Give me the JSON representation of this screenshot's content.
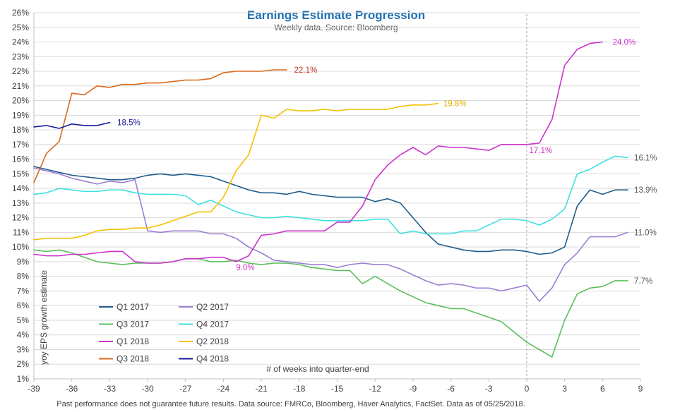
{
  "chart_data": {
    "type": "line",
    "title": "Earnings Estimate Progression",
    "subtitle": "Weekly data.  Source: Bloomberg",
    "xlabel": "# of weeks into quarter-end",
    "ylabel": "yoy EPS growth estimate",
    "footnote": "Past performance does not guarantee future results. Data source: FMRCo,  Bloomberg,  Haver Analytics, FactSet.  Data as of 05/25/2018.",
    "xlim": [
      -39,
      9
    ],
    "ylim": [
      1,
      26
    ],
    "x_ticks": [
      -39,
      -36,
      -33,
      -30,
      -27,
      -24,
      -21,
      -18,
      -15,
      -12,
      -9,
      -6,
      -3,
      0,
      3,
      6,
      9
    ],
    "y_ticks": [
      "1%",
      "2%",
      "3%",
      "4%",
      "5%",
      "6%",
      "7%",
      "8%",
      "9%",
      "10%",
      "11%",
      "12%",
      "13%",
      "14%",
      "15%",
      "16%",
      "17%",
      "18%",
      "19%",
      "20%",
      "21%",
      "22%",
      "23%",
      "24%",
      "25%",
      "26%"
    ],
    "grid": "horizontal",
    "reference_line_x": 0,
    "legend_position": "bottom-left",
    "series": [
      {
        "name": "Q1 2017",
        "color": "#1f5c8b",
        "x": [
          -39,
          -38,
          -37,
          -36,
          -35,
          -34,
          -33,
          -32,
          -31,
          -30,
          -29,
          -28,
          -27,
          -26,
          -25,
          -24,
          -23,
          -22,
          -21,
          -20,
          -19,
          -18,
          -17,
          -16,
          -15,
          -14,
          -13,
          -12,
          -11,
          -10,
          -9,
          -8,
          -7,
          -6,
          -5,
          -4,
          -3,
          -2,
          -1,
          0,
          1,
          2,
          3,
          4,
          5,
          6,
          7,
          8
        ],
        "y": [
          15.5,
          15.3,
          15.1,
          14.9,
          14.8,
          14.7,
          14.6,
          14.6,
          14.7,
          14.9,
          15.0,
          14.9,
          15.0,
          14.9,
          14.8,
          14.5,
          14.2,
          13.9,
          13.7,
          13.7,
          13.6,
          13.8,
          13.6,
          13.5,
          13.4,
          13.4,
          13.4,
          13.1,
          13.3,
          13.0,
          12.0,
          11.0,
          10.2,
          10.0,
          9.8,
          9.7,
          9.7,
          9.8,
          9.8,
          9.7,
          9.5,
          9.6,
          10.0,
          12.8,
          13.9,
          13.6,
          13.9,
          13.9
        ],
        "label": "13.9%",
        "label_color": "#595959",
        "label_x": 8.5,
        "label_y": 13.9
      },
      {
        "name": "Q2 2017",
        "color": "#9b7fd4",
        "x": [
          -39,
          -38,
          -37,
          -36,
          -35,
          -34,
          -33,
          -32,
          -31,
          -30,
          -29,
          -28,
          -27,
          -26,
          -25,
          -24,
          -23,
          -22,
          -21,
          -20,
          -19,
          -18,
          -17,
          -16,
          -15,
          -14,
          -13,
          -12,
          -11,
          -10,
          -9,
          -8,
          -7,
          -6,
          -5,
          -4,
          -3,
          -2,
          -1,
          0,
          1,
          2,
          3,
          4,
          5,
          6,
          7,
          8
        ],
        "y": [
          15.4,
          15.2,
          15.0,
          14.7,
          14.5,
          14.3,
          14.5,
          14.4,
          14.6,
          11.1,
          11.0,
          11.1,
          11.1,
          11.1,
          10.9,
          10.9,
          10.6,
          10.0,
          9.6,
          9.1,
          9.0,
          8.9,
          8.8,
          8.8,
          8.6,
          8.8,
          8.9,
          8.8,
          8.8,
          8.5,
          8.1,
          7.7,
          7.4,
          7.5,
          7.4,
          7.2,
          7.2,
          7.0,
          7.2,
          7.4,
          6.3,
          7.2,
          8.8,
          9.6,
          10.7,
          10.7,
          10.7,
          11.0
        ],
        "label": "11.0%",
        "label_color": "#595959",
        "label_x": 8.5,
        "label_y": 11.0
      },
      {
        "name": "Q3 2017",
        "color": "#5cbf5c",
        "x": [
          -39,
          -38,
          -37,
          -36,
          -35,
          -34,
          -33,
          -32,
          -31,
          -30,
          -29,
          -28,
          -27,
          -26,
          -25,
          -24,
          -23,
          -22,
          -21,
          -20,
          -19,
          -18,
          -17,
          -16,
          -15,
          -14,
          -13,
          -12,
          -11,
          -10,
          -9,
          -8,
          -7,
          -6,
          -5,
          -4,
          -3,
          -2,
          -1,
          0,
          1,
          2,
          3,
          4,
          5,
          6,
          7,
          8
        ],
        "y": [
          9.8,
          9.7,
          9.8,
          9.6,
          9.3,
          9.0,
          8.9,
          8.8,
          8.9,
          8.9,
          8.9,
          9.0,
          9.2,
          9.2,
          9.0,
          9.0,
          9.1,
          8.9,
          8.8,
          8.9,
          8.9,
          8.8,
          8.6,
          8.5,
          8.4,
          8.4,
          7.5,
          8.0,
          7.5,
          7.0,
          6.6,
          6.2,
          6.0,
          5.8,
          5.8,
          5.5,
          5.2,
          4.9,
          4.2,
          3.5,
          3.0,
          2.5,
          5.0,
          6.8,
          7.2,
          7.3,
          7.7,
          7.7
        ],
        "label": "7.7%",
        "label_color": "#595959",
        "label_x": 8.5,
        "label_y": 7.7
      },
      {
        "name": "Q4 2017",
        "color": "#3fe0e0",
        "x": [
          -39,
          -38,
          -37,
          -36,
          -35,
          -34,
          -33,
          -32,
          -31,
          -30,
          -29,
          -28,
          -27,
          -26,
          -25,
          -24,
          -23,
          -22,
          -21,
          -20,
          -19,
          -18,
          -17,
          -16,
          -15,
          -14,
          -13,
          -12,
          -11,
          -10,
          -9,
          -8,
          -7,
          -6,
          -5,
          -4,
          -3,
          -2,
          -1,
          0,
          1,
          2,
          3,
          4,
          5,
          6,
          7,
          8
        ],
        "y": [
          13.6,
          13.7,
          14.0,
          13.9,
          13.8,
          13.8,
          13.9,
          13.9,
          13.7,
          13.6,
          13.6,
          13.6,
          13.5,
          12.9,
          13.2,
          12.8,
          12.4,
          12.2,
          12.0,
          12.0,
          12.1,
          12.0,
          11.9,
          11.8,
          11.8,
          11.8,
          11.8,
          11.9,
          11.9,
          10.9,
          11.1,
          10.9,
          10.9,
          10.9,
          11.1,
          11.1,
          11.5,
          11.9,
          11.9,
          11.8,
          11.5,
          11.9,
          12.6,
          15.0,
          15.3,
          15.8,
          16.2,
          16.1
        ],
        "label": "16.1%",
        "label_color": "#595959",
        "label_x": 8.5,
        "label_y": 16.1
      },
      {
        "name": "Q1 2018",
        "color": "#cc33cc",
        "x": [
          -39,
          -38,
          -37,
          -36,
          -35,
          -34,
          -33,
          -32,
          -31,
          -30,
          -29,
          -28,
          -27,
          -26,
          -25,
          -24,
          -23,
          -22,
          -21,
          -20,
          -19,
          -18,
          -17,
          -16,
          -15,
          -14,
          -13,
          -12,
          -11,
          -10,
          -9,
          -8,
          -7,
          -6,
          -5,
          -4,
          -3,
          -2,
          -1,
          0,
          1,
          2,
          3,
          4,
          5,
          6
        ],
        "y": [
          9.5,
          9.4,
          9.4,
          9.5,
          9.5,
          9.6,
          9.7,
          9.7,
          9.0,
          8.9,
          8.9,
          9.0,
          9.2,
          9.2,
          9.3,
          9.3,
          9.0,
          9.4,
          10.8,
          10.9,
          11.1,
          11.1,
          11.1,
          11.1,
          11.7,
          11.7,
          12.8,
          14.6,
          15.6,
          16.3,
          16.8,
          16.3,
          16.9,
          16.8,
          16.8,
          16.7,
          16.6,
          17.0,
          17.0,
          17.0,
          17.1,
          18.7,
          22.4,
          23.5,
          23.9,
          24.0
        ],
        "label": "24.0%",
        "label_color": "#cc33cc",
        "label_x": 6.8,
        "label_y": 24.0,
        "extra_labels": [
          {
            "text": "17.1%",
            "x": 0.2,
            "y": 16.6
          },
          {
            "text": "9.0%",
            "x": -23.0,
            "y": 8.6
          }
        ]
      },
      {
        "name": "Q2 2018",
        "color": "#f5c000",
        "x": [
          -39,
          -38,
          -37,
          -36,
          -35,
          -34,
          -33,
          -32,
          -31,
          -30,
          -29,
          -28,
          -27,
          -26,
          -25,
          -24,
          -23,
          -22,
          -21,
          -20,
          -19,
          -18,
          -17,
          -16,
          -15,
          -14,
          -13,
          -12,
          -11,
          -10,
          -9,
          -8,
          -7
        ],
        "y": [
          10.5,
          10.6,
          10.6,
          10.6,
          10.8,
          11.1,
          11.2,
          11.2,
          11.3,
          11.3,
          11.5,
          11.8,
          12.1,
          12.4,
          12.4,
          13.4,
          15.2,
          16.3,
          19.0,
          18.8,
          19.4,
          19.3,
          19.3,
          19.4,
          19.3,
          19.4,
          19.4,
          19.4,
          19.4,
          19.6,
          19.7,
          19.7,
          19.8
        ],
        "label": "19.8%",
        "label_color": "#e0b000",
        "label_x": -6.6,
        "label_y": 19.8
      },
      {
        "name": "Q3 2018",
        "color": "#d96a1c",
        "x": [
          -39,
          -38,
          -37,
          -36,
          -35,
          -34,
          -33,
          -32,
          -31,
          -30,
          -29,
          -28,
          -27,
          -26,
          -25,
          -24,
          -23,
          -22,
          -21,
          -20,
          -19
        ],
        "y": [
          14.4,
          16.4,
          17.2,
          20.5,
          20.4,
          21.0,
          20.9,
          21.1,
          21.1,
          21.2,
          21.2,
          21.3,
          21.4,
          21.4,
          21.5,
          21.9,
          22.0,
          22.0,
          22.0,
          22.1,
          22.1
        ],
        "label": "22.1%",
        "label_color": "#c0392b",
        "label_x": -18.4,
        "label_y": 22.1
      },
      {
        "name": "Q4 2018",
        "color": "#1a1a9c",
        "x": [
          -39,
          -38,
          -37,
          -36,
          -35,
          -34,
          -33
        ],
        "y": [
          18.2,
          18.3,
          18.1,
          18.4,
          18.3,
          18.3,
          18.5
        ],
        "label": "18.5%",
        "label_color": "#1a1a9c",
        "label_x": -32.4,
        "label_y": 18.5
      }
    ]
  }
}
